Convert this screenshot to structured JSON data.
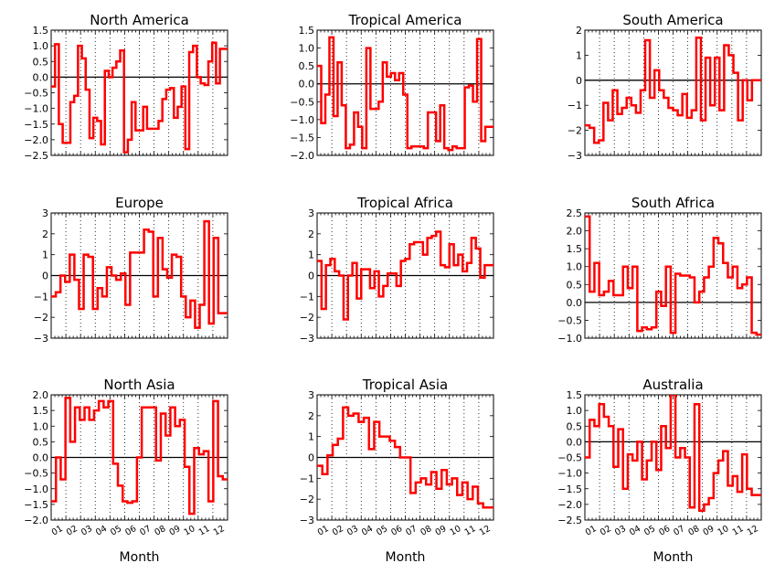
{
  "chart_data": [
    {
      "type": "line",
      "title": "North America",
      "xlabel": "",
      "ylim": [
        -2.5,
        1.5
      ],
      "yticks": [
        "1.5",
        "1.0",
        "0.5",
        "0.0",
        "−0.5",
        "−1.0",
        "−1.5",
        "−2.0",
        "−2.5"
      ],
      "values": [
        -0.3,
        1.05,
        -1.5,
        -2.1,
        -2.1,
        -0.8,
        -0.6,
        1.0,
        0.6,
        -0.4,
        -1.95,
        -1.3,
        -1.4,
        -2.15,
        0.2,
        0.0,
        0.3,
        0.5,
        0.85,
        -2.4,
        -2.0,
        -0.8,
        -1.7,
        -1.7,
        -0.95,
        -1.65,
        -1.65,
        -1.65,
        -1.4,
        -0.7,
        -0.4,
        -0.35,
        -1.3,
        -0.95,
        -0.3,
        -2.3,
        0.8,
        1.0,
        0.0,
        -0.2,
        -0.25,
        0.5,
        1.1,
        -0.2,
        0.9,
        0.9
      ]
    },
    {
      "type": "line",
      "title": "Tropical  America",
      "xlabel": "",
      "ylim": [
        -2.0,
        1.5
      ],
      "yticks": [
        "1.5",
        "1.0",
        "0.5",
        "0.0",
        "−0.5",
        "−1.0",
        "−1.5",
        "−2.0"
      ],
      "values": [
        0.5,
        -1.1,
        -0.3,
        1.3,
        -0.9,
        0.6,
        -0.6,
        -1.8,
        -1.7,
        -0.8,
        -1.2,
        -1.8,
        1.0,
        -0.7,
        -0.7,
        -0.5,
        0.6,
        0.2,
        0.3,
        0.1,
        0.3,
        -0.3,
        -1.8,
        -1.75,
        -1.75,
        -1.75,
        -1.8,
        -0.8,
        -0.8,
        -1.6,
        -0.6,
        -1.8,
        -1.85,
        -1.75,
        -1.8,
        -1.8,
        -0.1,
        -0.05,
        -0.5,
        1.25,
        -1.6,
        -1.2,
        -1.2
      ]
    },
    {
      "type": "line",
      "title": "South America",
      "xlabel": "",
      "ylim": [
        -3,
        2
      ],
      "yticks": [
        "2",
        "1",
        "0",
        "−1",
        "−2",
        "−3"
      ],
      "values": [
        -1.8,
        -1.9,
        -2.5,
        -2.4,
        -0.9,
        -1.6,
        -0.4,
        -1.35,
        -1.1,
        -0.7,
        -1.0,
        -1.3,
        -0.4,
        1.6,
        -0.7,
        0.4,
        -0.4,
        -0.7,
        -1.1,
        -1.2,
        -1.4,
        -0.55,
        -1.5,
        -1.2,
        1.7,
        -1.6,
        0.9,
        -1.0,
        0.9,
        -1.2,
        1.4,
        1.0,
        0.3,
        -1.6,
        0.0,
        -0.8,
        0.0,
        0.0
      ]
    },
    {
      "type": "line",
      "title": "Europe",
      "xlabel": "",
      "ylim": [
        -3,
        3
      ],
      "yticks": [
        "3",
        "2",
        "1",
        "0",
        "−1",
        "−2",
        "−3"
      ],
      "values": [
        -1.0,
        -0.8,
        0.0,
        -0.3,
        1.0,
        -0.2,
        -1.6,
        1.0,
        0.9,
        -1.6,
        -0.6,
        -1.0,
        0.4,
        0.0,
        -0.2,
        0.1,
        -1.4,
        1.1,
        1.1,
        1.1,
        2.2,
        2.1,
        -1.0,
        1.8,
        0.3,
        -0.1,
        1.0,
        0.9,
        -1.0,
        -2.0,
        -1.2,
        -2.5,
        -1.4,
        2.6,
        -2.3,
        1.8,
        -1.8,
        -1.8
      ]
    },
    {
      "type": "line",
      "title": "Tropical  Africa",
      "xlabel": "",
      "ylim": [
        -3,
        3
      ],
      "yticks": [
        "3",
        "2",
        "1",
        "0",
        "−1",
        "−2",
        "−3"
      ],
      "values": [
        0.7,
        -1.6,
        0.5,
        0.8,
        0.2,
        0.0,
        -2.1,
        0.0,
        0.6,
        -1.1,
        0.3,
        0.3,
        -0.6,
        0.2,
        -1.0,
        -0.5,
        0.1,
        0.1,
        -0.5,
        0.7,
        0.8,
        1.5,
        1.6,
        1.6,
        1.0,
        1.8,
        1.9,
        2.1,
        0.5,
        0.4,
        1.5,
        0.5,
        1.0,
        0.2,
        0.6,
        1.8,
        1.3,
        -0.1,
        0.5,
        0.5
      ]
    },
    {
      "type": "line",
      "title": "South Africa",
      "xlabel": "",
      "ylim": [
        -1.0,
        2.5
      ],
      "yticks": [
        "2.5",
        "2.0",
        "1.5",
        "1.0",
        "0.5",
        "0.0",
        "−0.5",
        "−1.0"
      ],
      "values": [
        2.4,
        0.3,
        1.1,
        0.2,
        0.3,
        0.6,
        0.2,
        0.2,
        1.0,
        0.4,
        1.0,
        -0.8,
        -0.7,
        -0.75,
        -0.7,
        0.3,
        -0.1,
        1.0,
        -0.85,
        0.8,
        0.75,
        0.75,
        0.7,
        0.0,
        0.3,
        0.7,
        1.0,
        1.8,
        1.65,
        1.1,
        0.7,
        1.0,
        0.4,
        0.5,
        0.7,
        -0.85,
        -0.9
      ]
    },
    {
      "type": "line",
      "title": "North Asia",
      "xlabel": "Month",
      "ylim": [
        -2.0,
        2.0
      ],
      "yticks": [
        "2.0",
        "1.5",
        "1.0",
        "0.5",
        "0.0",
        "−0.5",
        "−1.0",
        "−1.5",
        "−2.0"
      ],
      "xticks": [
        "01",
        "02",
        "03",
        "04",
        "05",
        "06",
        "07",
        "08",
        "09",
        "10",
        "11",
        "12"
      ],
      "values": [
        -1.4,
        0.0,
        -0.7,
        1.9,
        0.5,
        1.6,
        1.2,
        1.6,
        1.2,
        1.5,
        1.8,
        1.6,
        1.8,
        -0.2,
        -0.9,
        -1.4,
        -1.45,
        -1.4,
        0.0,
        1.6,
        1.6,
        1.6,
        -0.1,
        1.4,
        0.7,
        1.6,
        1.0,
        1.2,
        -0.3,
        -1.8,
        0.3,
        0.1,
        0.2,
        -1.4,
        1.8,
        -0.6,
        -0.7
      ]
    },
    {
      "type": "line",
      "title": "Tropical  Asia",
      "xlabel": "Month",
      "ylim": [
        -3,
        3
      ],
      "yticks": [
        "3",
        "2",
        "1",
        "0",
        "−1",
        "−2",
        "−3"
      ],
      "xticks": [
        "01",
        "02",
        "03",
        "04",
        "05",
        "06",
        "07",
        "08",
        "09",
        "10",
        "11",
        "12"
      ],
      "values": [
        -0.4,
        -0.8,
        0.1,
        0.6,
        0.9,
        2.4,
        2.0,
        2.1,
        1.7,
        1.9,
        0.4,
        1.7,
        1.0,
        1.0,
        0.8,
        0.5,
        0.0,
        0.0,
        -1.7,
        -1.2,
        -1.0,
        -1.3,
        -0.7,
        -1.5,
        -0.6,
        -1.3,
        -1.0,
        -1.8,
        -1.2,
        -2.0,
        -1.4,
        -2.2,
        -2.4,
        -2.4
      ]
    },
    {
      "type": "line",
      "title": "Australia",
      "xlabel": "Month",
      "ylim": [
        -2.5,
        1.5
      ],
      "yticks": [
        "1.5",
        "1.0",
        "0.5",
        "0.0",
        "−0.5",
        "−1.0",
        "−1.5",
        "−2.0",
        "−2.5"
      ],
      "xticks": [
        "01",
        "02",
        "03",
        "04",
        "05",
        "06",
        "07",
        "08",
        "09",
        "10",
        "11",
        "12"
      ],
      "values": [
        -0.5,
        0.7,
        0.5,
        1.2,
        0.8,
        0.5,
        -0.8,
        0.4,
        -1.5,
        -0.4,
        -0.6,
        0.0,
        -1.2,
        -0.6,
        0.0,
        -0.9,
        0.5,
        -0.2,
        1.5,
        -0.5,
        -0.2,
        -0.5,
        -2.1,
        1.2,
        -2.2,
        -2.0,
        -1.8,
        -1.0,
        -0.6,
        -0.3,
        -1.4,
        -1.1,
        -1.6,
        -0.4,
        -1.5,
        -1.7,
        -1.7
      ]
    }
  ]
}
